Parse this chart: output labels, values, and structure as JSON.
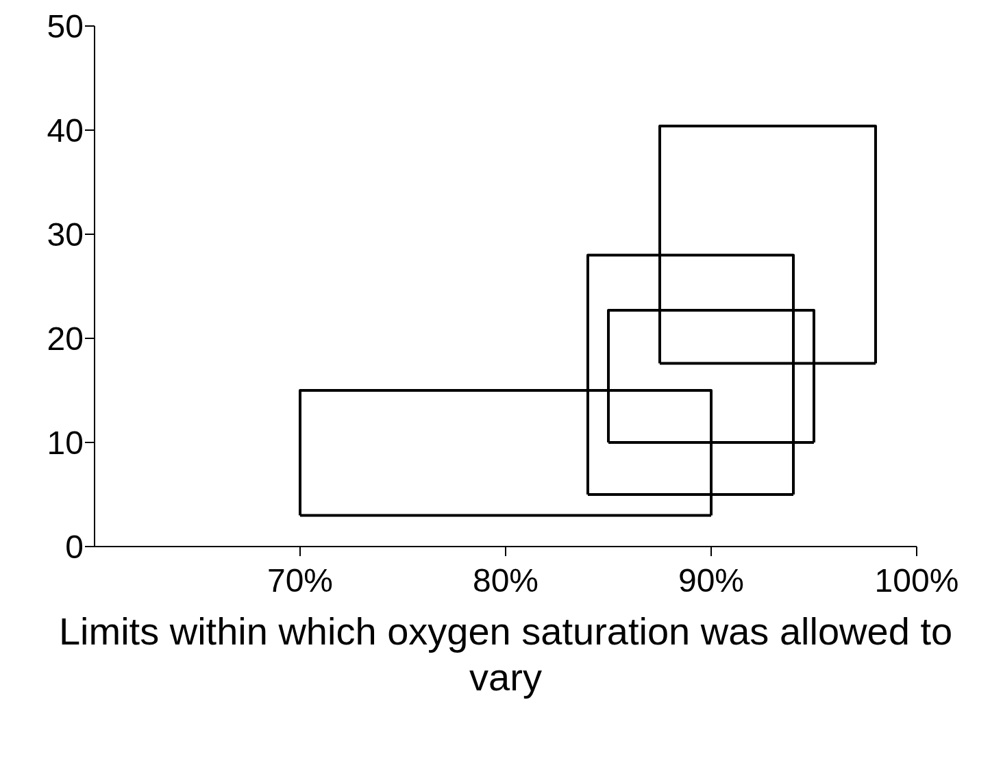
{
  "chart_data": {
    "type": "line",
    "xlabel": "Limits within which oxygen saturation was allowed to vary",
    "xlim": [
      60,
      100
    ],
    "xticks": [
      {
        "value": 70,
        "label": "70%"
      },
      {
        "value": 80,
        "label": "80%"
      },
      {
        "value": 90,
        "label": "90%"
      },
      {
        "value": 100,
        "label": "100%"
      }
    ],
    "ylim": [
      0,
      50
    ],
    "yticks": [
      0,
      10,
      20,
      30,
      40,
      50
    ],
    "marker": "none",
    "line_style": "solid",
    "series": [
      {
        "color": "#000000",
        "x": [
          70,
          70,
          90,
          90
        ],
        "values": [
          3,
          15,
          15,
          3
        ]
      },
      {
        "color": "#000000",
        "x": [
          70,
          90
        ],
        "values": [
          3,
          3
        ]
      },
      {
        "color": "#000000",
        "x": [
          84,
          84,
          94,
          94
        ],
        "values": [
          5,
          28,
          28,
          5
        ]
      },
      {
        "color": "#000000",
        "x": [
          84,
          94
        ],
        "values": [
          5,
          5
        ]
      },
      {
        "color": "#000000",
        "x": [
          85,
          85,
          95,
          95
        ],
        "values": [
          10,
          22.7,
          22.7,
          10
        ]
      },
      {
        "color": "#000000",
        "x": [
          85,
          95
        ],
        "values": [
          10,
          10
        ]
      },
      {
        "color": "#000000",
        "x": [
          87.5,
          87.5,
          98,
          98
        ],
        "values": [
          17.6,
          40.4,
          40.4,
          17.6
        ]
      },
      {
        "color": "#000000",
        "x": [
          87.5,
          98
        ],
        "values": [
          17.6,
          17.6
        ]
      }
    ]
  }
}
